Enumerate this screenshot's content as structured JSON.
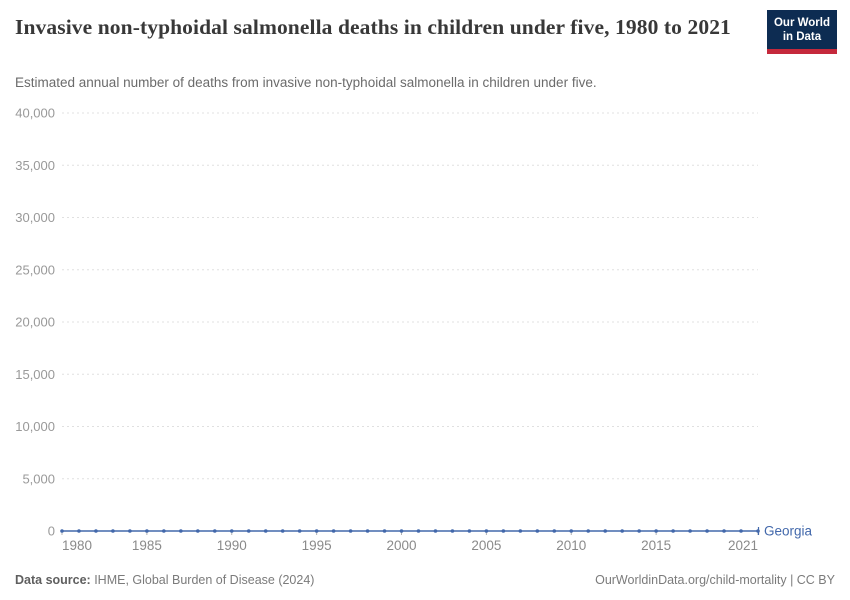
{
  "header": {
    "title": "Invasive non-typhoidal salmonella deaths in children under five, 1980 to 2021",
    "subtitle": "Estimated annual number of deaths from invasive non-typhoidal salmonella in children under five.",
    "logo": {
      "line1": "Our World",
      "line2": "in Data",
      "bg_color": "#0d2c52",
      "bar_color": "#c5293c"
    }
  },
  "chart_data": {
    "type": "line",
    "title": "Invasive non-typhoidal salmonella deaths in children under five, 1980 to 2021",
    "xlabel": "",
    "ylabel": "",
    "xlim": [
      1980,
      2021
    ],
    "ylim": [
      0,
      40000
    ],
    "grid": "horizontal-dashed",
    "legend_position": "line-end-label",
    "x": [
      1980,
      1981,
      1982,
      1983,
      1984,
      1985,
      1986,
      1987,
      1988,
      1989,
      1990,
      1991,
      1992,
      1993,
      1994,
      1995,
      1996,
      1997,
      1998,
      1999,
      2000,
      2001,
      2002,
      2003,
      2004,
      2005,
      2006,
      2007,
      2008,
      2009,
      2010,
      2011,
      2012,
      2013,
      2014,
      2015,
      2016,
      2017,
      2018,
      2019,
      2020,
      2021
    ],
    "series": [
      {
        "name": "Georgia",
        "color": "#4268ab",
        "values": [
          0,
          0,
          0,
          0,
          0,
          0,
          0,
          0,
          0,
          0,
          0,
          0,
          0,
          0,
          0,
          0,
          0,
          0,
          0,
          0,
          0,
          0,
          0,
          0,
          0,
          0,
          0,
          0,
          0,
          0,
          0,
          0,
          0,
          0,
          0,
          0,
          0,
          0,
          0,
          0,
          0,
          0
        ]
      }
    ],
    "x_ticks": [
      {
        "year": 1980,
        "label": "1980"
      },
      {
        "year": 1985,
        "label": "1985"
      },
      {
        "year": 1990,
        "label": "1990"
      },
      {
        "year": 1995,
        "label": "1995"
      },
      {
        "year": 2000,
        "label": "2000"
      },
      {
        "year": 2005,
        "label": "2005"
      },
      {
        "year": 2010,
        "label": "2010"
      },
      {
        "year": 2015,
        "label": "2015"
      },
      {
        "year": 2021,
        "label": "2021"
      }
    ],
    "y_ticks": [
      {
        "value": 0,
        "label": "0"
      },
      {
        "value": 5000,
        "label": "5,000"
      },
      {
        "value": 10000,
        "label": "10,000"
      },
      {
        "value": 15000,
        "label": "15,000"
      },
      {
        "value": 20000,
        "label": "20,000"
      },
      {
        "value": 25000,
        "label": "25,000"
      },
      {
        "value": 30000,
        "label": "30,000"
      },
      {
        "value": 35000,
        "label": "35,000"
      },
      {
        "value": 40000,
        "label": "40,000"
      }
    ]
  },
  "footer": {
    "datasource_label": "Data source:",
    "datasource_value": " IHME, Global Burden of Disease (2024)",
    "link": "OurWorldinData.org/child-mortality | CC BY"
  }
}
